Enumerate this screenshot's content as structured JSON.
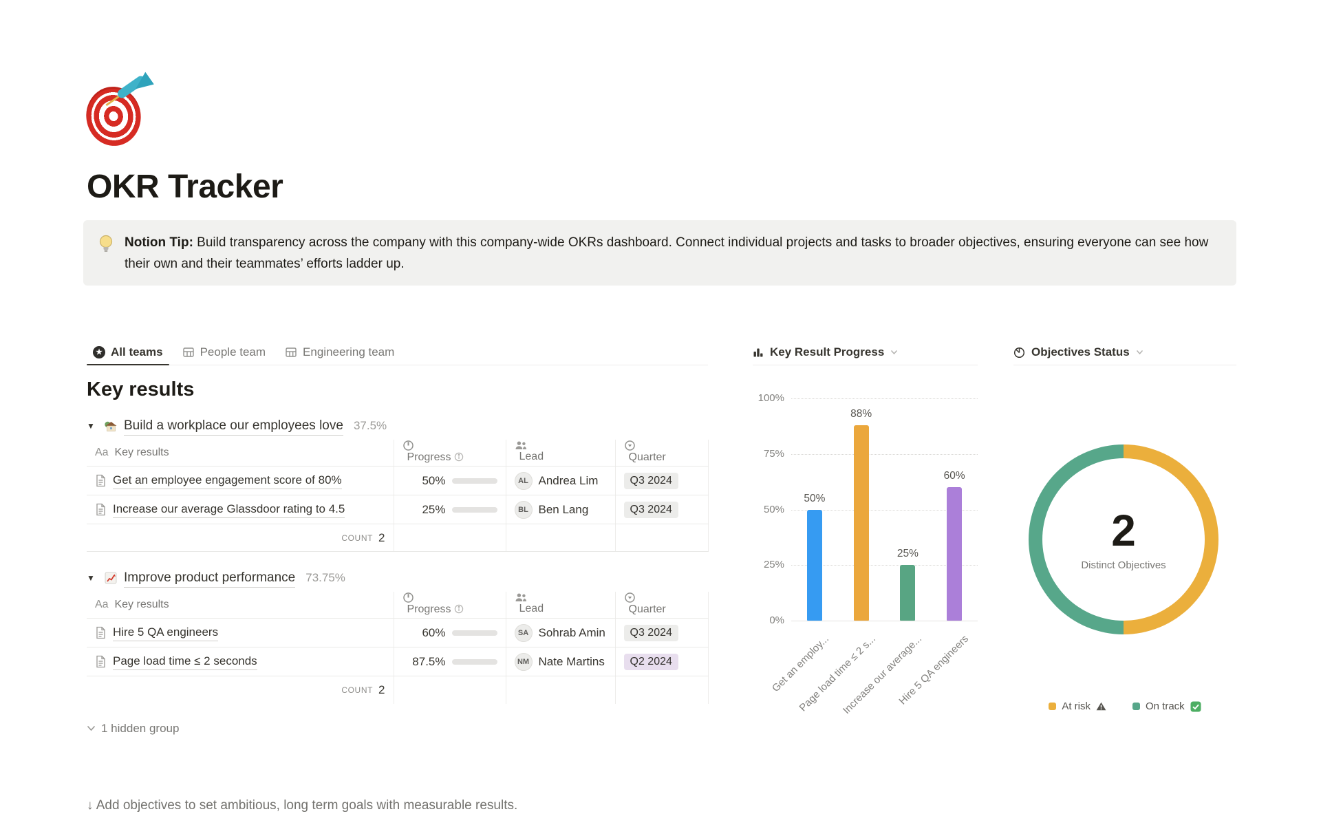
{
  "page": {
    "emoji": "🎯",
    "title": "OKR Tracker",
    "tip": {
      "emoji": "💡",
      "label": "Notion Tip:",
      "text": " Build transparency across the company with this company-wide OKRs dashboard. Connect individual projects and tasks to broader objectives, ensuring everyone can see how their own and their teammates’ efforts ladder up."
    },
    "footer": "↓ Add objectives to set ambitious, long term goals with measurable results."
  },
  "tabs": [
    {
      "label": "All teams",
      "active": true
    },
    {
      "label": "People team",
      "active": false
    },
    {
      "label": "Engineering team",
      "active": false
    }
  ],
  "key_results": {
    "heading": "Key results",
    "columns": {
      "name": "Key results",
      "name_prefix": "Aa",
      "progress": "Progress",
      "lead": "Lead",
      "quarter": "Quarter"
    },
    "groups": [
      {
        "emoji": "🏡",
        "title": "Build a workplace our employees love",
        "percent": "37.5%",
        "count_label": "COUNT",
        "count": "2",
        "rows": [
          {
            "name": "Get an employee engagement score of 80%",
            "progress": "50%",
            "progress_value": 50,
            "lead": "Andrea Lim",
            "initials": "AL",
            "quarter": "Q3 2024"
          },
          {
            "name": "Increase our average Glassdoor rating to 4.5",
            "progress": "25%",
            "progress_value": 25,
            "lead": "Ben Lang",
            "initials": "BL",
            "quarter": "Q3 2024"
          }
        ]
      },
      {
        "emoji": "📈",
        "title": "Improve product performance",
        "percent": "73.75%",
        "count_label": "COUNT",
        "count": "2",
        "rows": [
          {
            "name": "Hire 5 QA engineers",
            "progress": "60%",
            "progress_value": 60,
            "lead": "Sohrab Amin",
            "initials": "SA",
            "quarter": "Q3 2024"
          },
          {
            "name": "Page load time ≤ 2 seconds",
            "progress": "87.5%",
            "progress_value": 87.5,
            "lead": "Nate Martins",
            "initials": "NM",
            "quarter": "Q2 2024"
          }
        ]
      }
    ],
    "hidden_group": "1 hidden group"
  },
  "chart_data": [
    {
      "type": "bar",
      "title": "Key Result Progress",
      "categories": [
        "Get an employ...",
        "Page load time ≤ 2 s...",
        "Increase our average...",
        "Hire 5 QA engineers"
      ],
      "values": [
        50,
        88,
        25,
        60
      ],
      "value_labels": [
        "50%",
        "88%",
        "25%",
        "60%"
      ],
      "colors": [
        "#369BF2",
        "#EBA73C",
        "#58A583",
        "#AB7FD9"
      ],
      "ytick_values": [
        0,
        25,
        50,
        75,
        100
      ],
      "ytick_labels": [
        "0%",
        "25%",
        "50%",
        "75%",
        "100%"
      ],
      "ylim": [
        0,
        100
      ],
      "grid": "horizontal-dotted",
      "xlabel_rotation": -45
    },
    {
      "type": "pie",
      "title": "Objectives Status",
      "center_value": "2",
      "center_label": "Distinct Objectives",
      "slices": [
        {
          "label": "At risk",
          "suffix": "⚠",
          "value": 1,
          "color": "#EBAF3C"
        },
        {
          "label": "On track",
          "suffix": "✅",
          "value": 1,
          "color": "#57A78A"
        }
      ],
      "legend_position": "bottom"
    }
  ]
}
